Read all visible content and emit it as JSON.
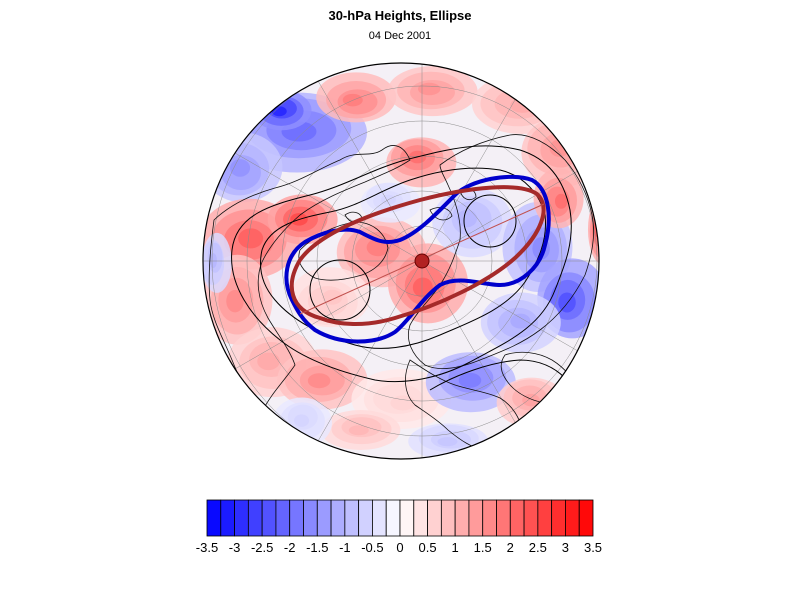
{
  "figure": {
    "title": "30-hPa Heights, Ellipse",
    "subtitle": "04 Dec 2001"
  },
  "map": {
    "projection": "polar stereographic, north pole centered",
    "field": "30-hPa height anomaly, filled contours",
    "overlays": [
      {
        "name": "vortex edge contour",
        "color": "#0000cc"
      },
      {
        "name": "fitted ellipse",
        "color": "#a52a2a"
      },
      {
        "name": "ellipse centroid",
        "color": "#b22222"
      },
      {
        "name": "height contours",
        "color": "#000000"
      },
      {
        "name": "coastlines",
        "color": "#000000"
      },
      {
        "name": "graticule",
        "color": "#888888"
      }
    ]
  },
  "colorbar": {
    "levels": [
      -3.5,
      -3.25,
      -3,
      -2.75,
      -2.5,
      -2.25,
      -2,
      -1.75,
      -1.5,
      -1.25,
      -1,
      -0.75,
      -0.5,
      -0.25,
      0,
      0.25,
      0.5,
      0.75,
      1,
      1.25,
      1.5,
      1.75,
      2,
      2.25,
      2.5,
      2.75,
      3,
      3.25,
      3.5
    ],
    "tick_labels": [
      "-3.5",
      "-3",
      "-2.5",
      "-2",
      "-1.5",
      "-1",
      "-0.5",
      "0",
      "0.5",
      "1",
      "1.5",
      "2",
      "2.5",
      "3",
      "3.5"
    ],
    "negative_color": "#0000ff",
    "positive_color": "#ff0000",
    "neutral_color": "#ffffff"
  }
}
